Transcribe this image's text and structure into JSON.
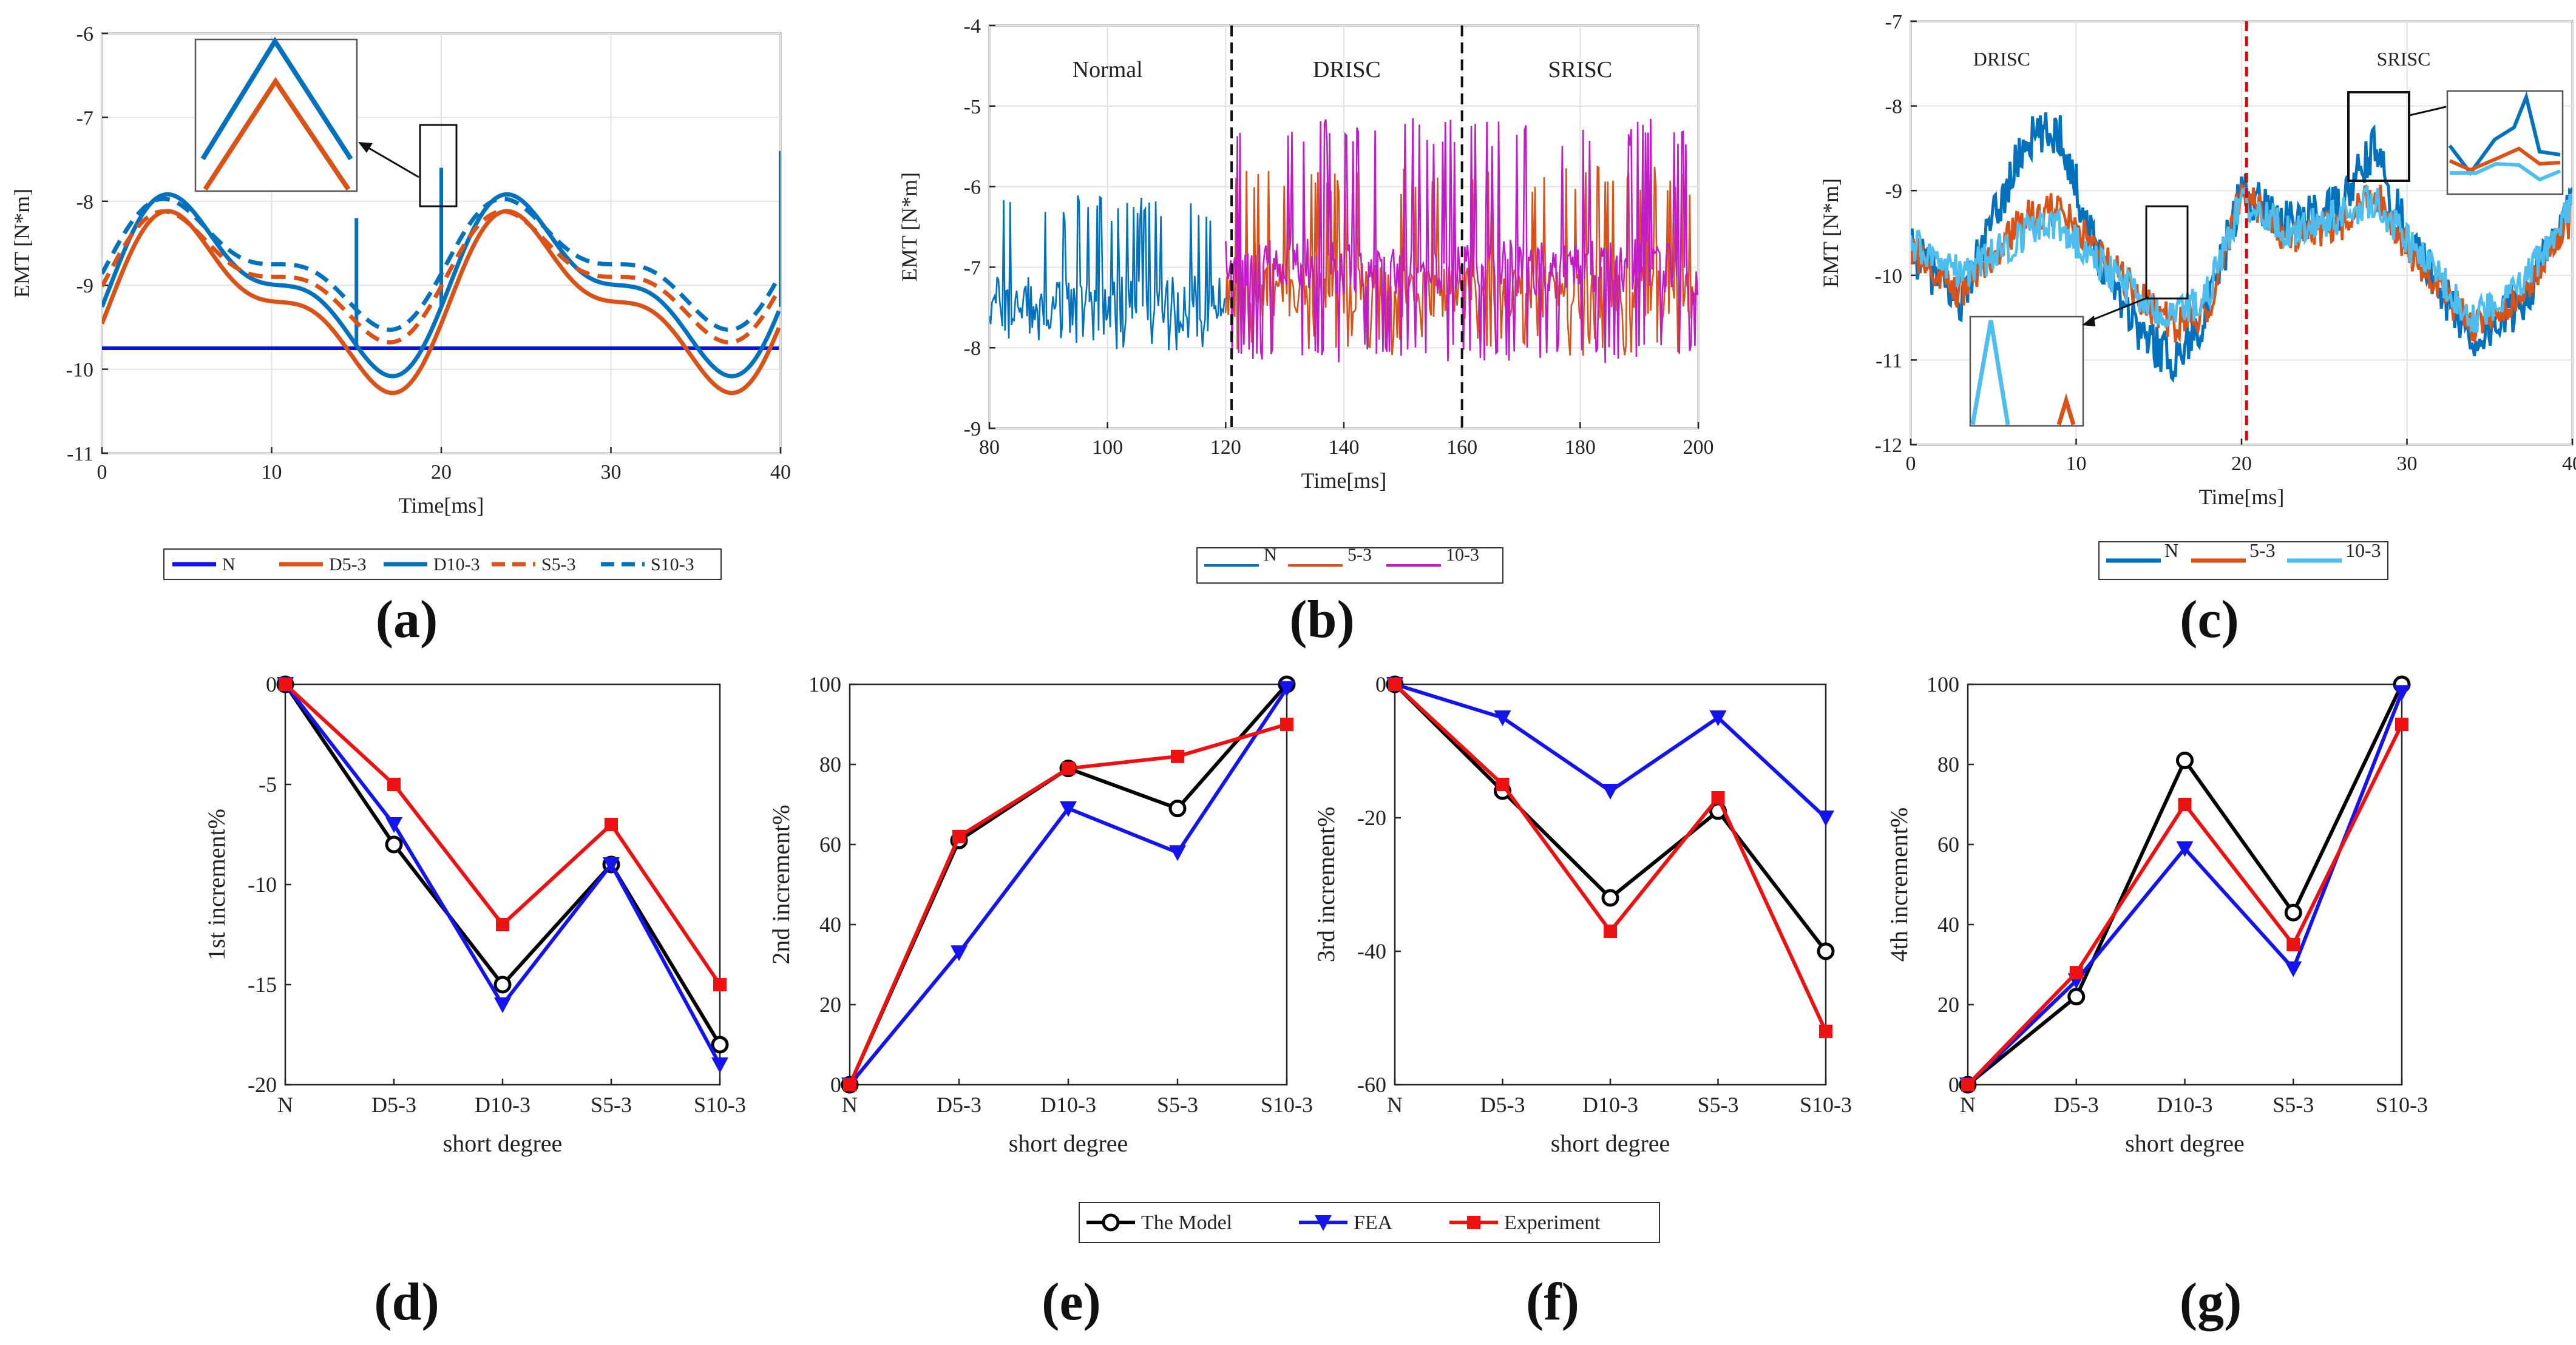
{
  "panel_labels": [
    "(a)",
    "(b)",
    "(c)",
    "(d)",
    "(e)",
    "(f)",
    "(g)"
  ],
  "colors": {
    "navy": "#0B12E8",
    "blue": "#0072BD",
    "light_blue": "#4DBEEE",
    "orange": "#D95319",
    "magenta": "#C21CC8",
    "red_dashed": "#EE1111",
    "model": "#000000",
    "fea": "#1414EE",
    "experiment": "#EE1111"
  },
  "chart_data": [
    {
      "id": "a",
      "type": "line",
      "title": "",
      "xlabel": "Time[ms]",
      "ylabel": "EMT [N*m]",
      "xlim": [
        0,
        40
      ],
      "ylim": [
        -11,
        -6
      ],
      "xticks": [
        0,
        10,
        20,
        30,
        40
      ],
      "yticks": [
        -6,
        -7,
        -8,
        -9,
        -10,
        -11
      ],
      "grid": true,
      "legend_position": "bottom",
      "series": [
        {
          "name": "N",
          "style": "solid",
          "color": "navy",
          "model": {
            "type": "const",
            "value": -9.75
          }
        },
        {
          "name": "D5-3",
          "style": "solid",
          "color": "orange",
          "model": {
            "type": "harm",
            "c": -9.2,
            "a1": 0.85,
            "a2": 0.4,
            "shift": 0
          }
        },
        {
          "name": "D10-3",
          "style": "solid",
          "color": "blue",
          "model": {
            "type": "harm",
            "c": -9.0,
            "a1": 0.85,
            "a2": 0.4,
            "shift": 0,
            "spikes": [
              [
                15,
                -8.2
              ],
              [
                20,
                -7.6
              ],
              [
                40,
                -7.4
              ]
            ]
          }
        },
        {
          "name": "S5-3",
          "style": "dashed",
          "color": "orange",
          "model": {
            "type": "harm",
            "c": -8.9,
            "a1": 0.6,
            "a2": 0.3,
            "shift": 0.2
          }
        },
        {
          "name": "S10-3",
          "style": "dashed",
          "color": "blue",
          "model": {
            "type": "harm",
            "c": -8.75,
            "a1": 0.6,
            "a2": 0.3,
            "shift": 0.2
          }
        }
      ]
    },
    {
      "id": "b",
      "type": "line",
      "title": "",
      "xlabel": "Time[ms]",
      "ylabel": "EMT [N*m]",
      "xlim": [
        80,
        200
      ],
      "ylim": [
        -9,
        -4
      ],
      "xticks": [
        80,
        100,
        120,
        140,
        160,
        180,
        200
      ],
      "yticks": [
        -4,
        -5,
        -6,
        -7,
        -8,
        -9
      ],
      "grid": true,
      "legend_position": "bottom",
      "annotations": [
        "Normal",
        "DRISC",
        "SRISC"
      ],
      "divider_x": [
        121,
        160
      ],
      "series": [
        {
          "name": "N",
          "color": "blue",
          "model": {
            "x": [
              80,
              120
            ],
            "c": -7.45,
            "lo": -8.05,
            "hi": -6.25
          }
        },
        {
          "name": "5-3",
          "color": "orange",
          "model": {
            "x": [
              120,
              200
            ],
            "c": -7.3,
            "lo": -8.1,
            "hi": -5.9
          }
        },
        {
          "name": "10-3",
          "color": "magenta",
          "model": {
            "x": [
              120,
              200
            ],
            "c": -7.0,
            "lo": -8.2,
            "hi": -5.3
          }
        }
      ]
    },
    {
      "id": "c",
      "type": "line",
      "title": "",
      "xlabel": "Time[ms]",
      "ylabel": "EMT [N*m]",
      "xlim": [
        0,
        40
      ],
      "ylim": [
        -12,
        -7
      ],
      "xticks": [
        0,
        10,
        20,
        30,
        40
      ],
      "yticks": [
        -7,
        -8,
        -9,
        -10,
        -11,
        -12
      ],
      "grid": true,
      "legend_position": "bottom",
      "annotations": [
        "DRISC",
        "SRISC"
      ],
      "divider_x": [
        20.3
      ],
      "series": [
        {
          "name": "N",
          "color": "blue",
          "model": {
            "x": [
              0,
              3,
              7,
              9,
              11,
              14,
              16,
              18,
              20,
              23,
              26,
              28,
              30,
              34,
              37,
              40
            ],
            "y": [
              -9.7,
              -10.3,
              -8.4,
              -8.3,
              -9.6,
              -10.7,
              -11.0,
              -10.4,
              -9.0,
              -9.4,
              -9.2,
              -8.5,
              -9.5,
              -10.8,
              -10.3,
              -9.2
            ]
          }
        },
        {
          "name": "5-3",
          "color": "orange",
          "model": {
            "x": [
              0,
              3,
              7,
              9,
              11,
              14,
              16,
              18,
              20,
              23,
              26,
              28,
              30,
              34,
              37,
              40
            ],
            "y": [
              -9.7,
              -10.2,
              -9.3,
              -9.2,
              -9.6,
              -10.3,
              -10.6,
              -10.4,
              -9.0,
              -9.6,
              -9.4,
              -9.0,
              -9.7,
              -10.6,
              -10.2,
              -9.3
            ]
          }
        },
        {
          "name": "10-3",
          "color": "light_blue",
          "model": {
            "x": [
              0,
              3,
              7,
              9,
              11,
              14,
              16,
              18,
              20,
              23,
              26,
              28,
              30,
              34,
              37,
              40
            ],
            "y": [
              -9.6,
              -10.0,
              -9.5,
              -9.4,
              -9.8,
              -10.3,
              -10.5,
              -10.2,
              -9.1,
              -9.5,
              -9.3,
              -9.1,
              -9.6,
              -10.5,
              -10.1,
              -9.2
            ]
          }
        }
      ]
    },
    {
      "id": "d",
      "type": "line",
      "title": "",
      "xlabel": "short degree",
      "ylabel": "1st increment%",
      "categories": [
        "N",
        "D5-3",
        "D10-3",
        "S5-3",
        "S10-3"
      ],
      "ylim": [
        -20,
        0
      ],
      "yticks": [
        0,
        -5,
        -10,
        -15,
        -20
      ],
      "grid": false,
      "series": [
        {
          "name": "The Model",
          "values": [
            0,
            -8,
            -15,
            -9,
            -18
          ]
        },
        {
          "name": "FEA",
          "values": [
            0,
            -7,
            -16,
            -9,
            -19
          ]
        },
        {
          "name": "Experiment",
          "values": [
            0,
            -5,
            -12,
            -7,
            -15
          ]
        }
      ]
    },
    {
      "id": "e",
      "type": "line",
      "title": "",
      "xlabel": "short degree",
      "ylabel": "2nd increment%",
      "categories": [
        "N",
        "D5-3",
        "D10-3",
        "S5-3",
        "S10-3"
      ],
      "ylim": [
        0,
        100
      ],
      "yticks": [
        100,
        80,
        60,
        40,
        20,
        0
      ],
      "grid": false,
      "series": [
        {
          "name": "The Model",
          "values": [
            0,
            61,
            79,
            69,
            100
          ]
        },
        {
          "name": "FEA",
          "values": [
            0,
            33,
            69,
            58,
            99
          ]
        },
        {
          "name": "Experiment",
          "values": [
            0,
            62,
            79,
            82,
            90
          ]
        }
      ]
    },
    {
      "id": "f",
      "type": "line",
      "title": "",
      "xlabel": "short degree",
      "ylabel": "3rd increment%",
      "categories": [
        "N",
        "D5-3",
        "D10-3",
        "S5-3",
        "S10-3"
      ],
      "ylim": [
        -60,
        0
      ],
      "yticks": [
        0,
        -20,
        -40,
        -60
      ],
      "grid": false,
      "series": [
        {
          "name": "The Model",
          "values": [
            0,
            -16,
            -32,
            -19,
            -40
          ]
        },
        {
          "name": "FEA",
          "values": [
            0,
            -5,
            -16,
            -5,
            -20
          ]
        },
        {
          "name": "Experiment",
          "values": [
            0,
            -15,
            -37,
            -17,
            -52
          ]
        }
      ]
    },
    {
      "id": "g",
      "type": "line",
      "title": "",
      "xlabel": "short degree",
      "ylabel": "4th increment%",
      "categories": [
        "N",
        "D5-3",
        "D10-3",
        "S5-3",
        "S10-3"
      ],
      "ylim": [
        0,
        100
      ],
      "yticks": [
        100,
        80,
        60,
        40,
        20,
        0
      ],
      "grid": false,
      "series": [
        {
          "name": "The Model",
          "values": [
            0,
            22,
            81,
            43,
            100
          ]
        },
        {
          "name": "FEA",
          "values": [
            0,
            26,
            59,
            29,
            98
          ]
        },
        {
          "name": "Experiment",
          "values": [
            0,
            28,
            70,
            35,
            90
          ]
        }
      ]
    }
  ]
}
